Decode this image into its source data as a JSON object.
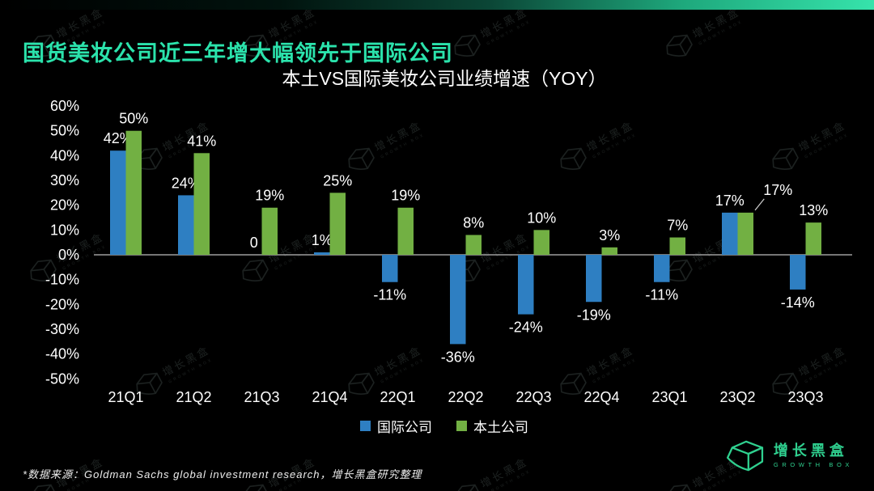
{
  "page": {
    "title": "国货美妆公司近三年增大幅领先于国际公司",
    "source_note": "*数据来源：Goldman Sachs global investment research，增长黑盒研究整理"
  },
  "brand": {
    "name_cn": "增长黑盒",
    "name_en": "GROWTH BOX",
    "color": "#2FD08F"
  },
  "colors": {
    "background": "#000000",
    "top_gradient_start": "#000000",
    "top_gradient_end": "#36E3AB",
    "title": "#2BE3AC",
    "axis_line": "#9E9E9E",
    "text": "#FFFFFF"
  },
  "chart_data": {
    "type": "bar",
    "title": "本土VS国际美妆公司业绩增速（YOY）",
    "categories": [
      "21Q1",
      "21Q2",
      "21Q3",
      "21Q4",
      "22Q1",
      "22Q2",
      "22Q3",
      "22Q4",
      "23Q1",
      "23Q2",
      "23Q3"
    ],
    "series": [
      {
        "name": "国际公司",
        "color": "#2E7FC2",
        "values": [
          42,
          24,
          0,
          1,
          -11,
          -36,
          -24,
          -19,
          -11,
          17,
          -14
        ],
        "labels": [
          "42%",
          "24%",
          "0",
          "1%",
          "-11%",
          "-36%",
          "-24%",
          "-19%",
          "-11%",
          "17%",
          "-14%"
        ]
      },
      {
        "name": "本土公司",
        "color": "#72B043",
        "values": [
          50,
          41,
          19,
          25,
          19,
          8,
          10,
          3,
          7,
          17,
          13
        ],
        "labels": [
          "50%",
          "41%",
          "19%",
          "25%",
          "19%",
          "8%",
          "10%",
          "3%",
          "7%",
          "17%",
          "13%"
        ]
      }
    ],
    "ylim": [
      -50,
      60
    ],
    "ytick_step": 10,
    "ytick_format": "percent",
    "grid": false,
    "legend_position": "bottom"
  }
}
